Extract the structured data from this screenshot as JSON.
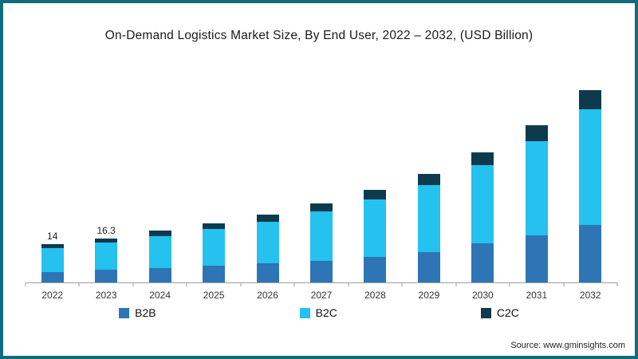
{
  "title": "On-Demand Logistics Market Size, By End User, 2022 – 2032, (USD Billion)",
  "source": "Source: www.gminsights.com",
  "colors": {
    "frame_border": "#0d6d7d",
    "background": "#ffffff",
    "b2b": "#2e75b6",
    "b2c": "#25c1ef",
    "c2c": "#0d3b4d",
    "axis": "#9e9e9e"
  },
  "legend": [
    {
      "label": "B2B",
      "color": "#2e75b6"
    },
    {
      "label": "B2C",
      "color": "#25c1ef"
    },
    {
      "label": "C2C",
      "color": "#0d3b4d"
    }
  ],
  "chart_data": {
    "type": "bar",
    "stacked": true,
    "title": "On-Demand Logistics Market Size, By End User, 2022 – 2032, (USD Billion)",
    "xlabel": "",
    "ylabel": "USD Billion",
    "ylim": [
      0,
      75
    ],
    "grid": false,
    "legend_position": "bottom",
    "categories": [
      "2022",
      "2023",
      "2024",
      "2025",
      "2026",
      "2027",
      "2028",
      "2029",
      "2030",
      "2031",
      "2032"
    ],
    "series": [
      {
        "name": "B2B",
        "color": "#2e75b6",
        "values": [
          3.9,
          4.6,
          5.3,
          6.1,
          7.0,
          8.1,
          9.5,
          11.2,
          14.4,
          17.4,
          21.3
        ]
      },
      {
        "name": "B2C",
        "color": "#25c1ef",
        "values": [
          8.7,
          10.1,
          11.8,
          13.5,
          15.5,
          18.0,
          21.1,
          24.8,
          28.8,
          34.8,
          42.6
        ]
      },
      {
        "name": "C2C",
        "color": "#0d3b4d",
        "values": [
          1.4,
          1.6,
          1.9,
          2.2,
          2.5,
          2.9,
          3.4,
          4.0,
          4.8,
          5.8,
          7.1
        ]
      }
    ],
    "totals": [
      14,
      16.3,
      19,
      21.8,
      25,
      29,
      34,
      40,
      48,
      58,
      71
    ],
    "bar_labels": [
      "14",
      "16.3",
      "",
      "",
      "",
      "",
      "",
      "",
      "",
      "",
      ""
    ]
  }
}
